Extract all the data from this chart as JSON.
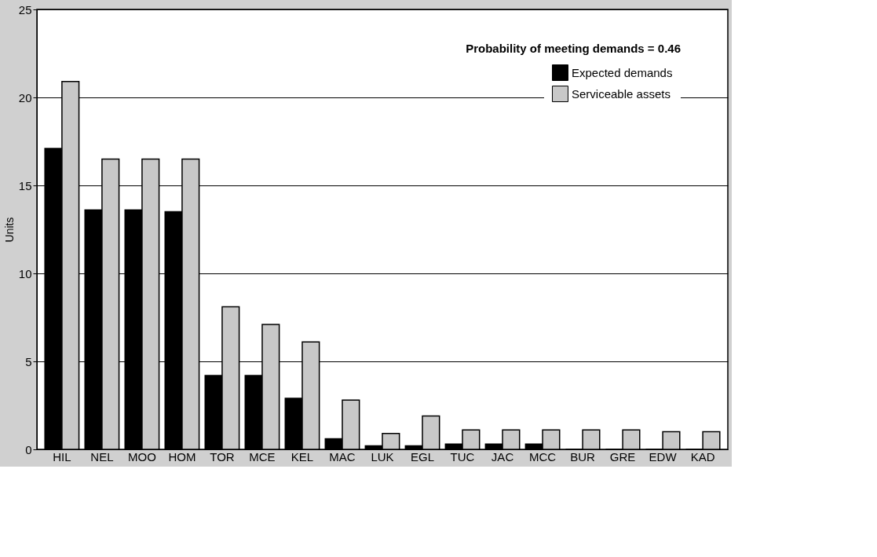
{
  "chart_data": {
    "type": "bar",
    "ylabel": "Units",
    "categories": [
      "HIL",
      "NEL",
      "MOO",
      "HOM",
      "TOR",
      "MCE",
      "KEL",
      "MAC",
      "LUK",
      "EGL",
      "TUC",
      "JAC",
      "MCC",
      "BUR",
      "GRE",
      "EDW",
      "KAD"
    ],
    "series": [
      {
        "name": "Expected demands",
        "color": "#000000",
        "values": [
          17.1,
          13.6,
          13.6,
          13.5,
          4.2,
          4.2,
          2.9,
          0.6,
          0.2,
          0.2,
          0.3,
          0.3,
          0.3,
          0,
          0,
          0,
          0
        ]
      },
      {
        "name": "Serviceable assets",
        "color": "#c8c8c8",
        "values": [
          20.9,
          16.5,
          16.5,
          16.5,
          8.1,
          7.1,
          6.1,
          2.8,
          0.9,
          1.9,
          1.1,
          1.1,
          1.1,
          1.1,
          1.1,
          1.0,
          1.0
        ]
      }
    ],
    "ylim": [
      0,
      25
    ],
    "yticks": [
      0,
      5,
      10,
      15,
      20,
      25
    ],
    "grid": "y",
    "legend": "top right",
    "annotations": [
      "Probability of meeting demands = 0.46"
    ]
  }
}
